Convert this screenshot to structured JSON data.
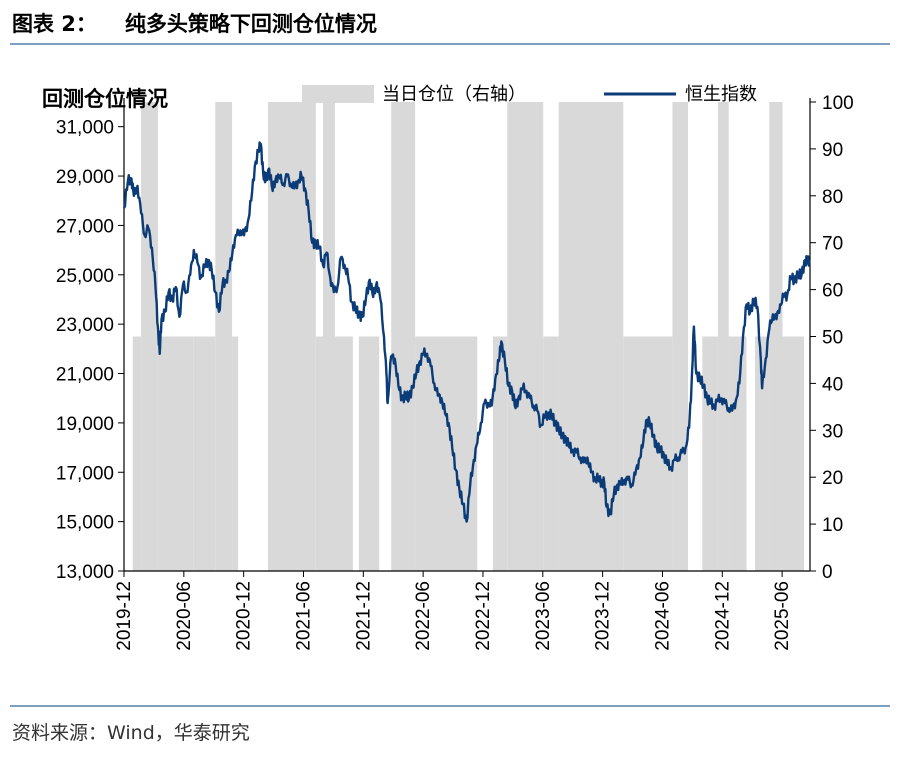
{
  "header": {
    "figure_label": "图表 2：",
    "title": "纯多头策略下回测仓位情况"
  },
  "source": "资料来源：Wind，华泰研究",
  "chart_data": {
    "type": "line",
    "title": "回测仓位情况",
    "legend": [
      {
        "name": "当日仓位（右轴）",
        "color": "#d9d9d9",
        "kind": "area"
      },
      {
        "name": "恒生指数",
        "color": "#0b3c78",
        "kind": "line"
      }
    ],
    "y_left": {
      "range": [
        13000,
        32000
      ],
      "ticks": [
        13000,
        15000,
        17000,
        19000,
        21000,
        23000,
        25000,
        27000,
        29000,
        31000
      ],
      "tick_labels": [
        "13,000",
        "15,000",
        "17,000",
        "19,000",
        "21,000",
        "23,000",
        "25,000",
        "27,000",
        "29,000",
        "31,000"
      ]
    },
    "y_right": {
      "range": [
        0,
        100
      ],
      "ticks": [
        0,
        10,
        20,
        30,
        40,
        50,
        60,
        70,
        80,
        90,
        100
      ],
      "tick_labels": [
        "0",
        "10",
        "20",
        "30",
        "40",
        "50",
        "60",
        "70",
        "80",
        "90",
        "100"
      ]
    },
    "x_axis": {
      "range": [
        2019.917,
        2025.65
      ],
      "ticks": [
        2019.917,
        2020.417,
        2020.917,
        2021.417,
        2021.917,
        2022.417,
        2022.917,
        2023.417,
        2023.917,
        2024.417,
        2024.917,
        2025.417
      ],
      "tick_labels": [
        "2019-12",
        "2020-06",
        "2020-12",
        "2021-06",
        "2021-12",
        "2022-06",
        "2022-12",
        "2023-06",
        "2023-12",
        "2024-06",
        "2024-12",
        "2025-06"
      ]
    },
    "series": [
      {
        "name": "恒生指数",
        "axis": "left",
        "points": [
          [
            2019.917,
            27700
          ],
          [
            2019.95,
            28800
          ],
          [
            2019.98,
            28900
          ],
          [
            2020.0,
            28200
          ],
          [
            2020.03,
            28600
          ],
          [
            2020.06,
            27500
          ],
          [
            2020.09,
            26600
          ],
          [
            2020.12,
            26900
          ],
          [
            2020.15,
            26100
          ],
          [
            2020.18,
            24500
          ],
          [
            2020.2,
            22900
          ],
          [
            2020.215,
            21800
          ],
          [
            2020.23,
            23200
          ],
          [
            2020.26,
            23500
          ],
          [
            2020.29,
            24300
          ],
          [
            2020.32,
            24000
          ],
          [
            2020.35,
            24500
          ],
          [
            2020.38,
            23300
          ],
          [
            2020.41,
            24600
          ],
          [
            2020.44,
            24300
          ],
          [
            2020.47,
            25000
          ],
          [
            2020.5,
            26000
          ],
          [
            2020.53,
            25500
          ],
          [
            2020.56,
            24900
          ],
          [
            2020.59,
            25300
          ],
          [
            2020.62,
            25600
          ],
          [
            2020.65,
            25200
          ],
          [
            2020.68,
            24300
          ],
          [
            2020.71,
            23500
          ],
          [
            2020.74,
            24600
          ],
          [
            2020.77,
            24800
          ],
          [
            2020.8,
            25200
          ],
          [
            2020.83,
            26200
          ],
          [
            2020.86,
            26600
          ],
          [
            2020.89,
            26800
          ],
          [
            2020.92,
            26600
          ],
          [
            2020.95,
            27100
          ],
          [
            2020.98,
            28000
          ],
          [
            2021.01,
            29400
          ],
          [
            2021.04,
            30000
          ],
          [
            2021.06,
            30300
          ],
          [
            2021.08,
            29100
          ],
          [
            2021.1,
            28800
          ],
          [
            2021.13,
            29300
          ],
          [
            2021.16,
            28400
          ],
          [
            2021.19,
            29000
          ],
          [
            2021.22,
            28900
          ],
          [
            2021.25,
            28700
          ],
          [
            2021.28,
            29000
          ],
          [
            2021.31,
            28700
          ],
          [
            2021.34,
            28500
          ],
          [
            2021.37,
            28800
          ],
          [
            2021.4,
            29000
          ],
          [
            2021.43,
            28500
          ],
          [
            2021.46,
            27600
          ],
          [
            2021.49,
            26300
          ],
          [
            2021.52,
            26300
          ],
          [
            2021.55,
            26100
          ],
          [
            2021.58,
            25400
          ],
          [
            2021.61,
            25900
          ],
          [
            2021.64,
            24900
          ],
          [
            2021.67,
            24300
          ],
          [
            2021.7,
            24500
          ],
          [
            2021.73,
            25700
          ],
          [
            2021.76,
            25400
          ],
          [
            2021.79,
            24900
          ],
          [
            2021.82,
            23900
          ],
          [
            2021.85,
            23600
          ],
          [
            2021.88,
            23400
          ],
          [
            2021.91,
            23300
          ],
          [
            2021.94,
            24100
          ],
          [
            2021.97,
            24800
          ],
          [
            2022.0,
            24100
          ],
          [
            2022.03,
            24700
          ],
          [
            2022.06,
            24000
          ],
          [
            2022.09,
            22500
          ],
          [
            2022.11,
            21000
          ],
          [
            2022.12,
            19800
          ],
          [
            2022.15,
            21700
          ],
          [
            2022.18,
            21600
          ],
          [
            2022.21,
            20500
          ],
          [
            2022.24,
            20000
          ],
          [
            2022.27,
            20100
          ],
          [
            2022.3,
            20000
          ],
          [
            2022.33,
            20500
          ],
          [
            2022.36,
            21000
          ],
          [
            2022.39,
            21500
          ],
          [
            2022.42,
            21800
          ],
          [
            2022.45,
            21800
          ],
          [
            2022.48,
            21300
          ],
          [
            2022.51,
            20600
          ],
          [
            2022.54,
            20100
          ],
          [
            2022.57,
            20000
          ],
          [
            2022.6,
            19400
          ],
          [
            2022.63,
            19000
          ],
          [
            2022.66,
            18000
          ],
          [
            2022.69,
            17100
          ],
          [
            2022.72,
            16300
          ],
          [
            2022.75,
            15700
          ],
          [
            2022.78,
            15000
          ],
          [
            2022.81,
            16500
          ],
          [
            2022.84,
            17500
          ],
          [
            2022.87,
            18200
          ],
          [
            2022.9,
            19000
          ],
          [
            2022.93,
            19800
          ],
          [
            2022.96,
            19800
          ],
          [
            2022.99,
            19700
          ],
          [
            2023.02,
            20800
          ],
          [
            2023.05,
            21500
          ],
          [
            2023.07,
            22300
          ],
          [
            2023.1,
            21500
          ],
          [
            2023.13,
            20500
          ],
          [
            2023.16,
            20300
          ],
          [
            2023.19,
            19600
          ],
          [
            2023.22,
            20100
          ],
          [
            2023.25,
            20400
          ],
          [
            2023.28,
            20300
          ],
          [
            2023.31,
            20000
          ],
          [
            2023.34,
            19700
          ],
          [
            2023.37,
            19500
          ],
          [
            2023.4,
            18900
          ],
          [
            2023.43,
            19200
          ],
          [
            2023.46,
            19400
          ],
          [
            2023.49,
            19300
          ],
          [
            2023.52,
            19000
          ],
          [
            2023.55,
            18800
          ],
          [
            2023.58,
            18400
          ],
          [
            2023.61,
            18400
          ],
          [
            2023.64,
            18000
          ],
          [
            2023.67,
            17900
          ],
          [
            2023.7,
            17800
          ],
          [
            2023.73,
            17600
          ],
          [
            2023.76,
            17400
          ],
          [
            2023.79,
            17600
          ],
          [
            2023.82,
            17000
          ],
          [
            2023.85,
            16800
          ],
          [
            2023.88,
            16700
          ],
          [
            2023.91,
            16600
          ],
          [
            2023.93,
            16600
          ],
          [
            2023.95,
            15600
          ],
          [
            2023.98,
            15300
          ],
          [
            2024.01,
            16100
          ],
          [
            2024.04,
            16500
          ],
          [
            2024.07,
            16500
          ],
          [
            2024.1,
            16700
          ],
          [
            2024.13,
            16700
          ],
          [
            2024.16,
            16500
          ],
          [
            2024.19,
            16900
          ],
          [
            2024.22,
            17500
          ],
          [
            2024.25,
            18000
          ],
          [
            2024.28,
            19100
          ],
          [
            2024.31,
            19000
          ],
          [
            2024.34,
            18500
          ],
          [
            2024.37,
            18000
          ],
          [
            2024.4,
            17900
          ],
          [
            2024.43,
            17700
          ],
          [
            2024.46,
            17300
          ],
          [
            2024.49,
            17200
          ],
          [
            2024.52,
            17500
          ],
          [
            2024.55,
            17600
          ],
          [
            2024.58,
            17800
          ],
          [
            2024.61,
            18000
          ],
          [
            2024.64,
            18800
          ],
          [
            2024.66,
            20500
          ],
          [
            2024.68,
            22900
          ],
          [
            2024.7,
            21000
          ],
          [
            2024.73,
            20800
          ],
          [
            2024.76,
            20500
          ],
          [
            2024.79,
            20000
          ],
          [
            2024.82,
            19800
          ],
          [
            2024.85,
            19700
          ],
          [
            2024.88,
            19900
          ],
          [
            2024.91,
            20000
          ],
          [
            2024.94,
            19800
          ],
          [
            2024.97,
            19600
          ],
          [
            2025.0,
            19500
          ],
          [
            2025.03,
            19900
          ],
          [
            2025.06,
            20600
          ],
          [
            2025.09,
            22500
          ],
          [
            2025.12,
            23800
          ],
          [
            2025.15,
            23500
          ],
          [
            2025.18,
            24000
          ],
          [
            2025.21,
            23700
          ],
          [
            2025.24,
            21500
          ],
          [
            2025.25,
            20400
          ],
          [
            2025.28,
            21600
          ],
          [
            2025.31,
            22800
          ],
          [
            2025.34,
            23400
          ],
          [
            2025.37,
            23200
          ],
          [
            2025.4,
            23800
          ],
          [
            2025.43,
            24100
          ],
          [
            2025.46,
            24200
          ],
          [
            2025.49,
            24900
          ],
          [
            2025.52,
            24800
          ],
          [
            2025.55,
            25000
          ],
          [
            2025.58,
            25000
          ],
          [
            2025.61,
            25600
          ],
          [
            2025.63,
            25500
          ],
          [
            2025.65,
            25600
          ]
        ]
      },
      {
        "name": "当日仓位（右轴）",
        "axis": "right",
        "kind": "area",
        "segments": [
          {
            "start": 2019.99,
            "end": 2020.06,
            "value": 50
          },
          {
            "start": 2020.06,
            "end": 2020.2,
            "value": 100
          },
          {
            "start": 2020.2,
            "end": 2020.5,
            "value": 50
          },
          {
            "start": 2020.5,
            "end": 2020.68,
            "value": 50
          },
          {
            "start": 2020.68,
            "end": 2020.82,
            "value": 100
          },
          {
            "start": 2020.82,
            "end": 2020.87,
            "value": 50
          },
          {
            "start": 2021.12,
            "end": 2021.52,
            "value": 100
          },
          {
            "start": 2021.52,
            "end": 2021.58,
            "value": 50
          },
          {
            "start": 2021.58,
            "end": 2021.68,
            "value": 100
          },
          {
            "start": 2021.68,
            "end": 2021.83,
            "value": 50
          },
          {
            "start": 2021.88,
            "end": 2022.05,
            "value": 50
          },
          {
            "start": 2022.15,
            "end": 2022.35,
            "value": 100
          },
          {
            "start": 2022.35,
            "end": 2022.87,
            "value": 50
          },
          {
            "start": 2023.0,
            "end": 2023.12,
            "value": 50
          },
          {
            "start": 2023.12,
            "end": 2023.42,
            "value": 100
          },
          {
            "start": 2023.42,
            "end": 2023.55,
            "value": 50
          },
          {
            "start": 2023.55,
            "end": 2024.09,
            "value": 100
          },
          {
            "start": 2024.09,
            "end": 2024.5,
            "value": 50
          },
          {
            "start": 2024.5,
            "end": 2024.63,
            "value": 100
          },
          {
            "start": 2024.75,
            "end": 2024.88,
            "value": 50
          },
          {
            "start": 2024.88,
            "end": 2024.97,
            "value": 100
          },
          {
            "start": 2024.97,
            "end": 2025.12,
            "value": 50
          },
          {
            "start": 2025.19,
            "end": 2025.31,
            "value": 50
          },
          {
            "start": 2025.31,
            "end": 2025.42,
            "value": 100
          },
          {
            "start": 2025.42,
            "end": 2025.6,
            "value": 50
          }
        ]
      }
    ]
  }
}
